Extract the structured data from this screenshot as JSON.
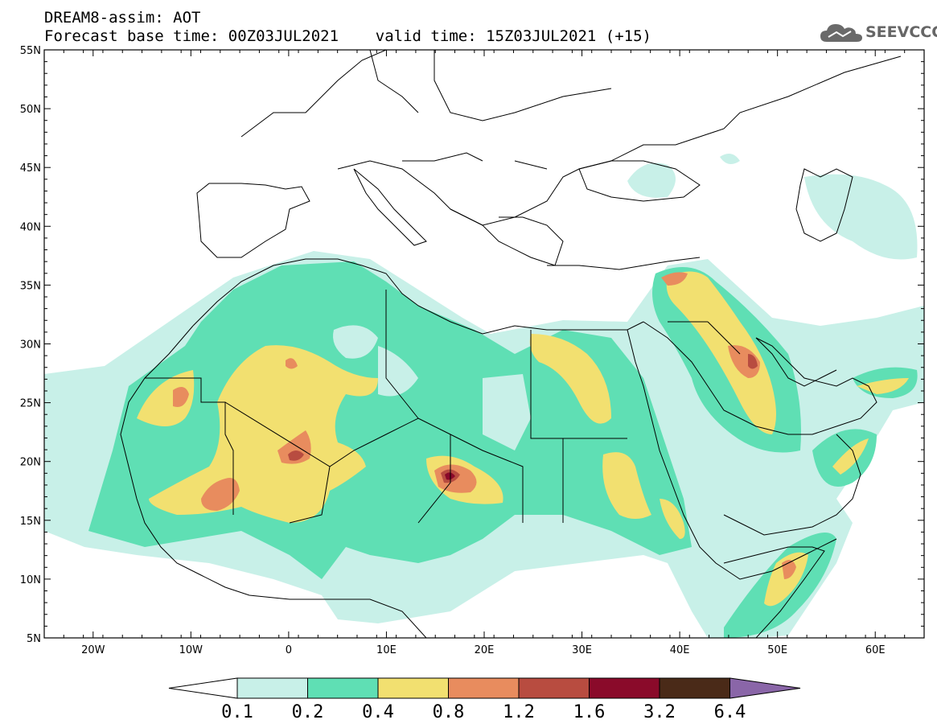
{
  "header": {
    "line1": "DREAM8-assim: AOT",
    "line2": "Forecast base time: 00Z03JUL2021    valid time: 15Z03JUL2021 (+15)"
  },
  "logo": {
    "text": "SEEVCCC",
    "icon": "cloud-icon"
  },
  "map": {
    "lon_range": [
      -25,
      65
    ],
    "lat_range": [
      5,
      55
    ],
    "lat_ticks": [
      "5N",
      "10N",
      "15N",
      "20N",
      "25N",
      "30N",
      "35N",
      "40N",
      "45N",
      "50N",
      "55N"
    ],
    "lon_ticks": [
      "20W",
      "10W",
      "0",
      "10E",
      "20E",
      "30E",
      "40E",
      "50E",
      "60E"
    ]
  },
  "colorbar": {
    "levels": [
      "0.1",
      "0.2",
      "0.4",
      "0.8",
      "1.2",
      "1.6",
      "3.2",
      "6.4"
    ],
    "colors": [
      "#c8f0e8",
      "#5fdfb4",
      "#f2e070",
      "#e88c5e",
      "#b84c40",
      "#8a0a2a",
      "#4a2a18"
    ],
    "under_color": "#ffffff",
    "over_color": "#8a66a8"
  }
}
